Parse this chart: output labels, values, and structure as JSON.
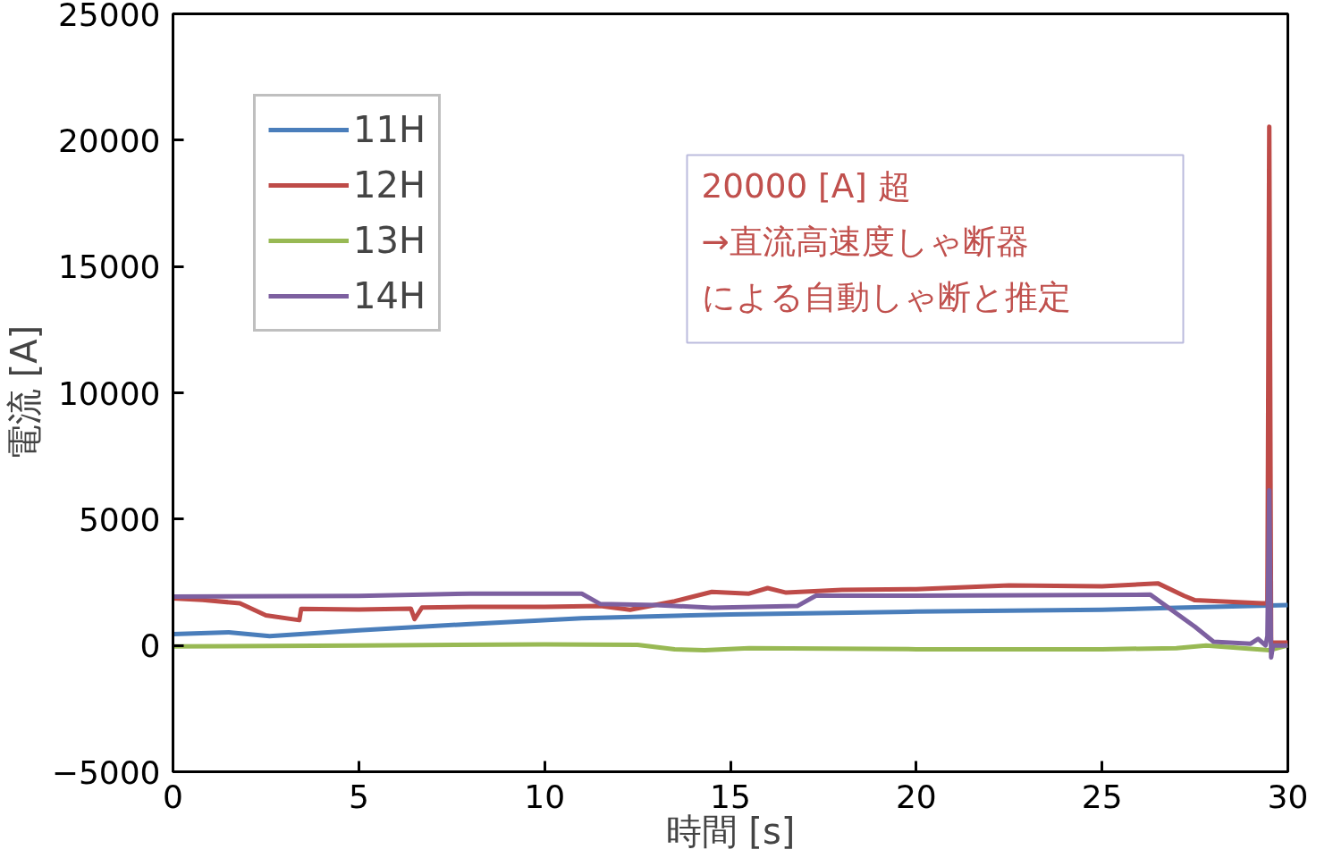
{
  "chart_data": {
    "type": "line",
    "xlabel": "時間 [s]",
    "ylabel": "電流 [A]",
    "xlim": [
      0,
      30
    ],
    "xticks": [
      0,
      5,
      10,
      15,
      20,
      25,
      30
    ],
    "ylim": [
      -5000,
      25000
    ],
    "yticks": [
      {
        "value": -5000,
        "label": "−5000"
      },
      0,
      5000,
      10000,
      15000,
      20000,
      25000
    ],
    "grid": false,
    "legend": "top left",
    "marker": "none",
    "line_style": "solid",
    "series": [
      {
        "name": "11H",
        "color": "#4a7ebb",
        "x": [
          0,
          1.5,
          2.6,
          5,
          8,
          11,
          15,
          20,
          25,
          27,
          30
        ],
        "values": [
          450,
          520,
          370,
          600,
          850,
          1080,
          1230,
          1340,
          1410,
          1490,
          1600
        ]
      },
      {
        "name": "12H",
        "color": "#be4b48",
        "x": [
          0,
          0.8,
          1.8,
          2.5,
          3.4,
          3.45,
          5,
          6.4,
          6.5,
          6.7,
          8,
          10,
          11.5,
          12.3,
          13.5,
          14.5,
          15.5,
          16,
          16.5,
          18,
          20,
          22.5,
          25,
          26.5,
          27.2,
          27.5,
          29.3,
          29.45,
          29.5,
          29.55,
          30
        ],
        "values": [
          1860,
          1800,
          1670,
          1190,
          1000,
          1450,
          1420,
          1460,
          1040,
          1500,
          1530,
          1530,
          1560,
          1410,
          1750,
          2120,
          2050,
          2270,
          2090,
          2200,
          2230,
          2380,
          2340,
          2460,
          1970,
          1790,
          1670,
          1670,
          20530,
          110,
          110
        ]
      },
      {
        "name": "13H",
        "color": "#98b954",
        "x": [
          0,
          5,
          10,
          12.5,
          13.5,
          14.3,
          15.5,
          20,
          25,
          27,
          27.8,
          29.5,
          30
        ],
        "values": [
          -40,
          0,
          40,
          20,
          -150,
          -190,
          -110,
          -150,
          -150,
          -110,
          0,
          -190,
          0
        ]
      },
      {
        "name": "14H",
        "color": "#7d60a0",
        "x": [
          0,
          5,
          8,
          11,
          11.5,
          13,
          14.5,
          16.8,
          17.3,
          20,
          26.3,
          27.5,
          28,
          29,
          29.2,
          29.4,
          29.45,
          29.5,
          29.55,
          29.6,
          30
        ],
        "values": [
          1930,
          1960,
          2050,
          2050,
          1640,
          1600,
          1490,
          1560,
          1970,
          1970,
          2010,
          740,
          150,
          70,
          260,
          0,
          370,
          6140,
          -480,
          0,
          0
        ]
      }
    ],
    "annotations": [
      "20000 [A] 超",
      "→直流高速度しゃ断器",
      "による自動しゃ断と推定"
    ]
  }
}
